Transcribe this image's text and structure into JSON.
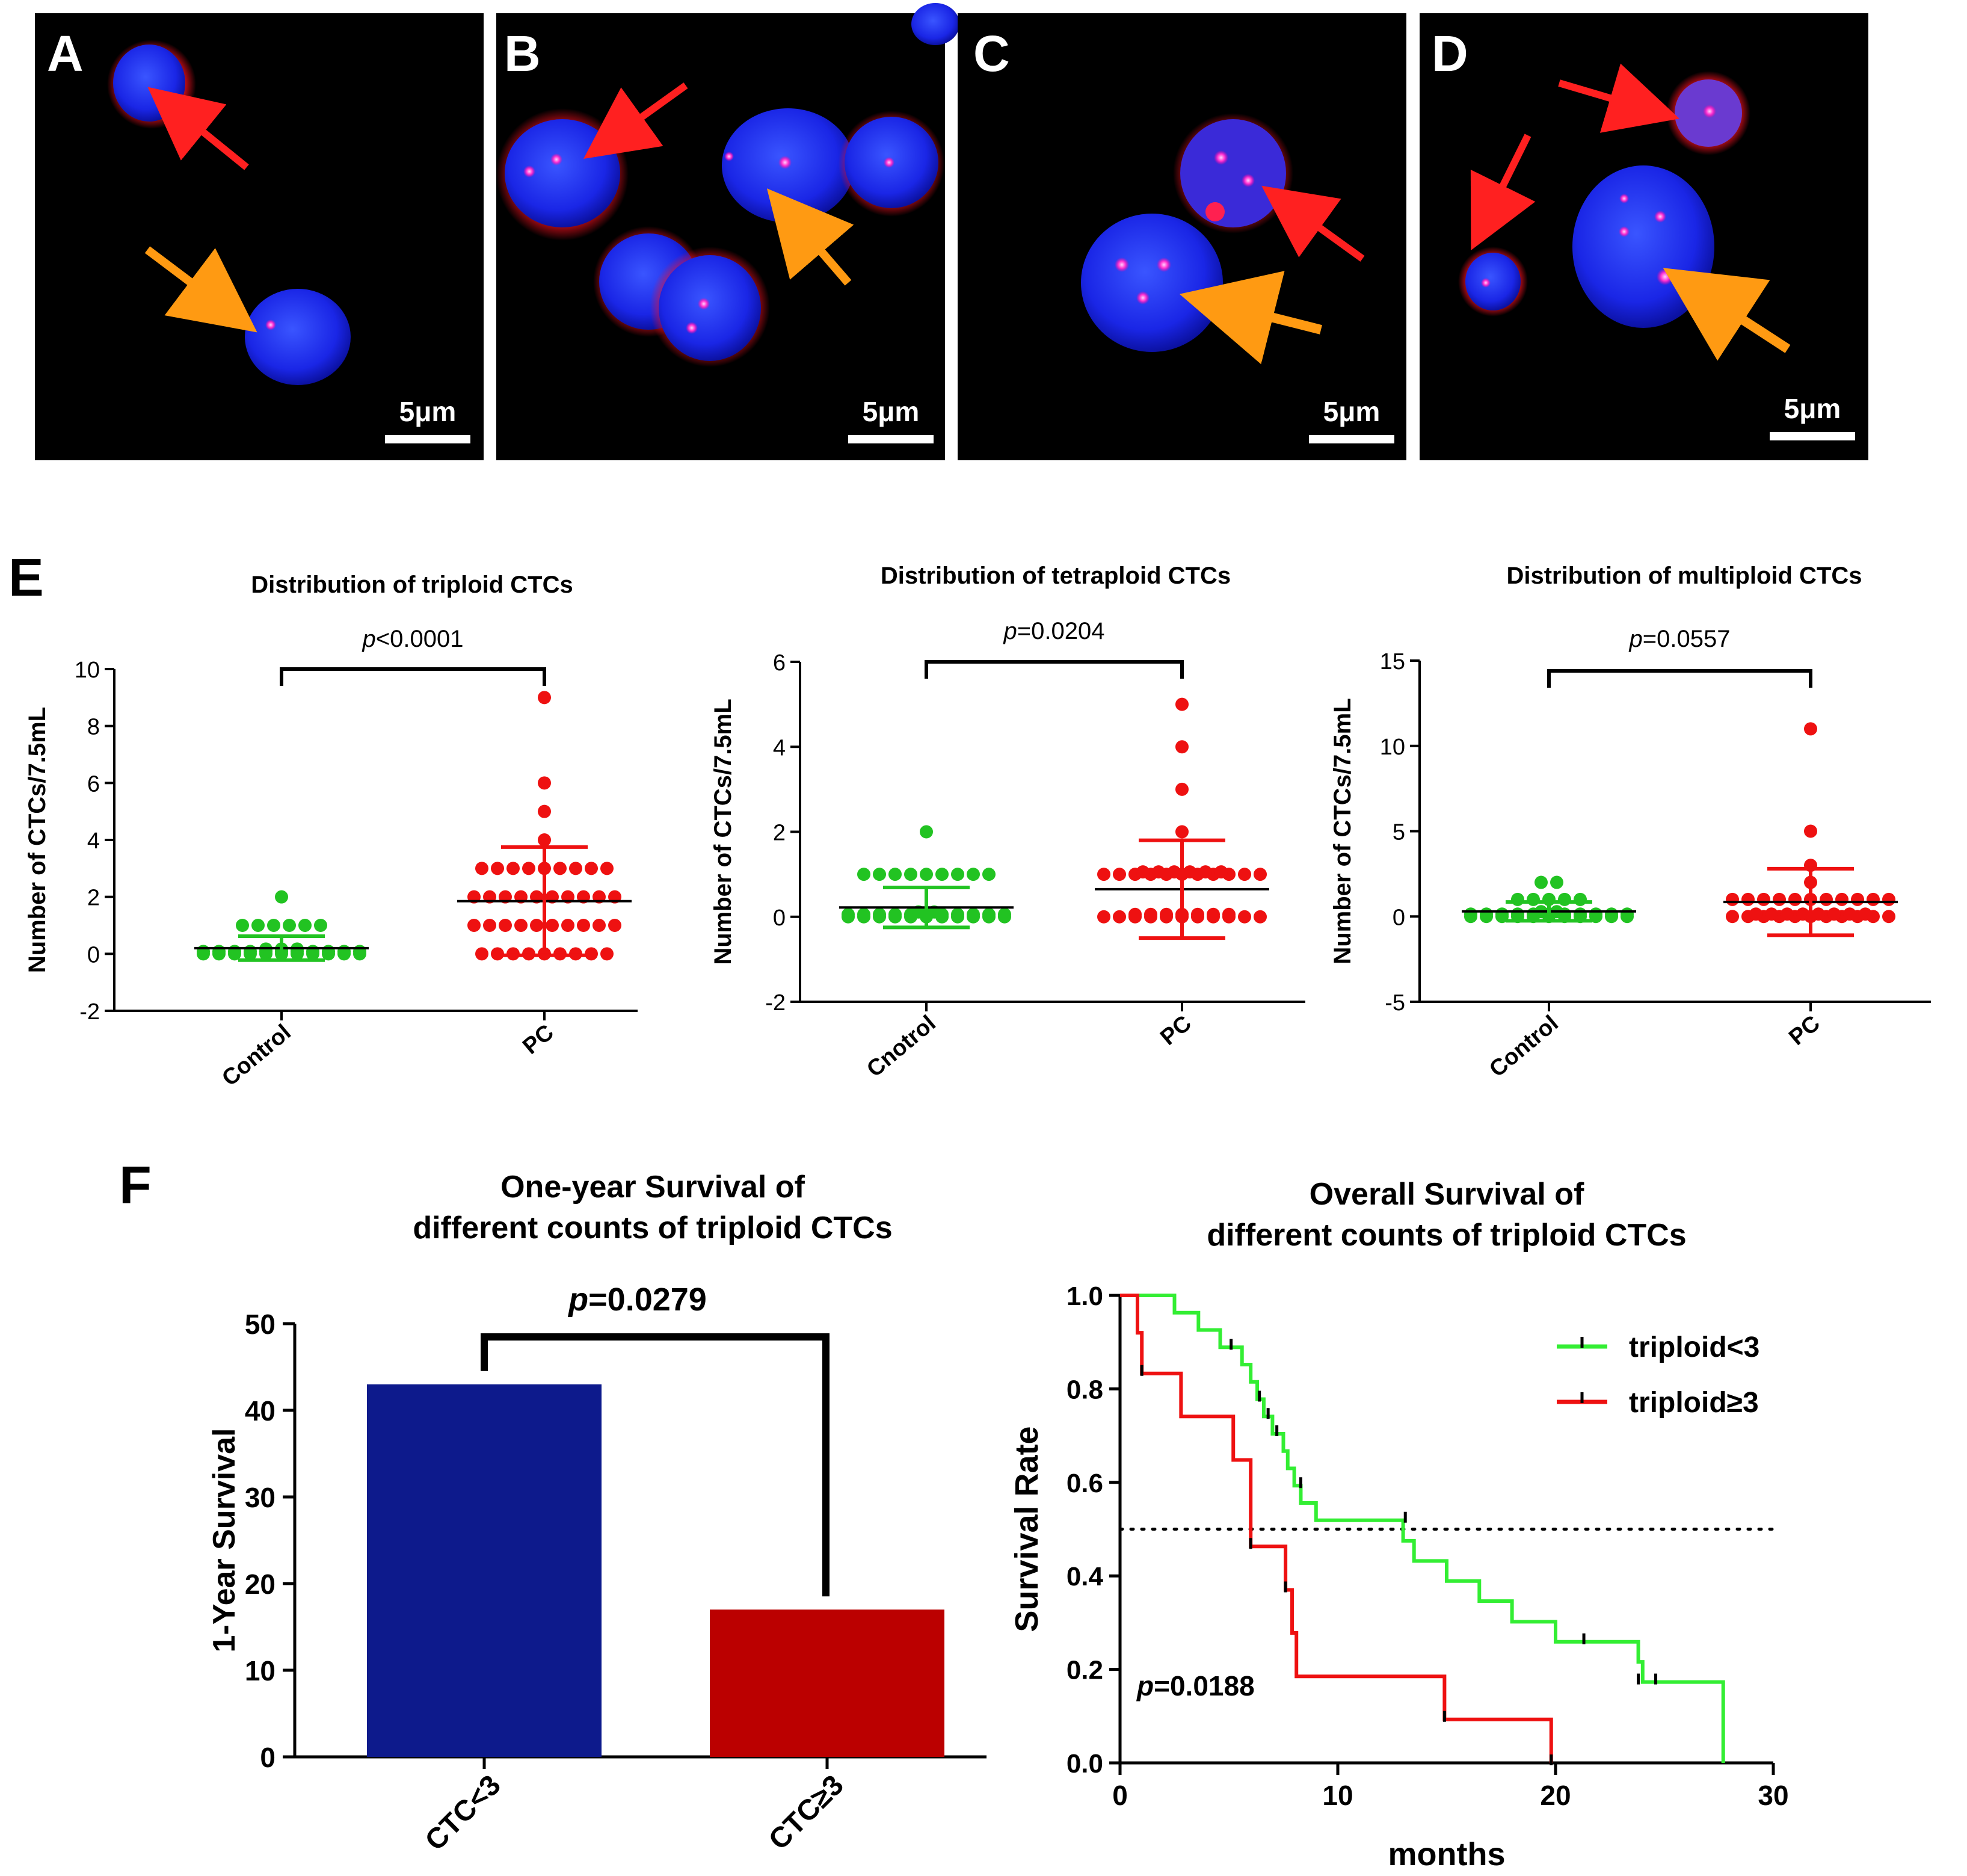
{
  "panels": {
    "A": {
      "letter": "A",
      "scale_bar": "5μm"
    },
    "B": {
      "letter": "B",
      "scale_bar": "5μm"
    },
    "C": {
      "letter": "C",
      "scale_bar": "5μm"
    },
    "D": {
      "letter": "D",
      "scale_bar": "5μm"
    },
    "E": {
      "letter": "E"
    },
    "F": {
      "letter": "F"
    }
  },
  "colors": {
    "control": "#22c322",
    "pc": "#ee1111",
    "nucleus": "#1f2fff",
    "red_arrow": "#ff2020",
    "orange_arrow": "#ff9a12",
    "bar_low": "#0d1a8c",
    "bar_high": "#bb0000",
    "km_low": "#33ee33",
    "km_high": "#ee1111"
  },
  "chart_data": [
    {
      "type": "scatter",
      "title": "Distribution of triploid CTCs",
      "ylabel": "Number of CTCs/7.5mL",
      "categories": [
        "Control",
        "PC"
      ],
      "ylim": [
        -2,
        10
      ],
      "yticks": [
        "-2",
        "0",
        "2",
        "4",
        "6",
        "8",
        "10"
      ],
      "p_prefix": "p",
      "p_value": "<0.0001",
      "series": [
        {
          "name": "Control",
          "values": [
            2,
            1,
            1,
            1,
            1,
            1,
            1,
            0,
            0,
            0,
            0,
            0,
            0,
            0,
            0,
            0,
            0,
            0,
            0,
            0,
            0,
            0,
            0,
            0,
            0,
            0,
            0,
            0,
            0,
            0,
            0,
            0
          ],
          "mean": 0.2,
          "sd": 0.42
        },
        {
          "name": "PC",
          "values": [
            9,
            6,
            5,
            4,
            3,
            3,
            3,
            3,
            3,
            3,
            3,
            3,
            3,
            2,
            2,
            2,
            2,
            2,
            2,
            2,
            2,
            2,
            2,
            1,
            1,
            1,
            1,
            1,
            1,
            1,
            1,
            1,
            1,
            0,
            0,
            0,
            0,
            0,
            0,
            0,
            0,
            0
          ],
          "mean": 1.85,
          "sd": 1.9
        }
      ]
    },
    {
      "type": "scatter",
      "title": "Distribution of tetraploid CTCs",
      "ylabel": "Number of CTCs/7.5mL",
      "categories": [
        "Cnotrol",
        "PC"
      ],
      "ylim": [
        -2,
        6
      ],
      "yticks": [
        "-2",
        "0",
        "2",
        "4",
        "6"
      ],
      "p_prefix": "p",
      "p_value": "=0.0204",
      "series": [
        {
          "name": "Cnotrol",
          "values": [
            2,
            1,
            1,
            1,
            1,
            1,
            1,
            1,
            1,
            1,
            0,
            0,
            0,
            0,
            0,
            0,
            0,
            0,
            0,
            0,
            0,
            0,
            0,
            0,
            0,
            0,
            0,
            0,
            0,
            0,
            0,
            0,
            0,
            0
          ],
          "mean": 0.22,
          "sd": 0.47
        },
        {
          "name": "PC",
          "values": [
            5,
            4,
            3,
            2,
            1,
            1,
            1,
            1,
            1,
            1,
            1,
            1,
            1,
            1,
            1,
            1,
            1,
            1,
            1,
            1,
            1,
            0,
            0,
            0,
            0,
            0,
            0,
            0,
            0,
            0,
            0,
            0,
            0,
            0,
            0,
            0,
            0,
            0,
            0
          ],
          "mean": 0.65,
          "sd": 1.15
        }
      ]
    },
    {
      "type": "scatter",
      "title": "Distribution of multiploid CTCs",
      "ylabel": "Number of CTCs/7.5mL",
      "categories": [
        "Control",
        "PC"
      ],
      "ylim": [
        -5,
        15
      ],
      "yticks": [
        "-5",
        "0",
        "5",
        "10",
        "15"
      ],
      "p_prefix": "p",
      "p_value": "=0.0557",
      "series": [
        {
          "name": "Control",
          "values": [
            2,
            2,
            1,
            1,
            1,
            1,
            1,
            0,
            0,
            0,
            0,
            0,
            0,
            0,
            0,
            0,
            0,
            0,
            0,
            0,
            0,
            0,
            0,
            0,
            0,
            0,
            0,
            0,
            0,
            0,
            0
          ],
          "mean": 0.3,
          "sd": 0.55
        },
        {
          "name": "PC",
          "values": [
            11,
            5,
            3,
            2,
            1,
            1,
            1,
            1,
            1,
            1,
            1,
            1,
            1,
            1,
            1,
            0,
            0,
            0,
            0,
            0,
            0,
            0,
            0,
            0,
            0,
            0,
            0,
            0,
            0,
            0,
            0,
            0,
            0,
            0
          ],
          "mean": 0.85,
          "sd": 1.95
        }
      ]
    },
    {
      "type": "bar",
      "title_line1": "One-year Survival of",
      "title_line2": "different counts of  triploid CTCs",
      "ylabel": "1-Year Survival",
      "categories": [
        "CTC<3",
        "CTC≥3"
      ],
      "values": [
        43,
        17
      ],
      "ylim": [
        0,
        50
      ],
      "yticks": [
        "0",
        "10",
        "20",
        "30",
        "40",
        "50"
      ],
      "p_prefix": "p",
      "p_value": "=0.0279"
    },
    {
      "type": "line",
      "title_line1": "Overall Survival of",
      "title_line2": "different counts of triploid CTCs",
      "xlabel": "months",
      "ylabel": "Survival Rate",
      "xlim": [
        0,
        30
      ],
      "ylim": [
        0,
        1
      ],
      "xticks": [
        "0",
        "10",
        "20",
        "30"
      ],
      "yticks": [
        "0.0",
        "0.2",
        "0.4",
        "0.6",
        "0.8",
        "1.0"
      ],
      "median_line": 0.5,
      "p_prefix": "p",
      "p_value": "=0.0188",
      "series": [
        {
          "name": "triploid<3",
          "steps": [
            [
              0,
              1.0
            ],
            [
              2.5,
              0.963
            ],
            [
              3.6,
              0.926
            ],
            [
              4.6,
              0.889
            ],
            [
              5.6,
              0.852
            ],
            [
              6.0,
              0.815
            ],
            [
              6.3,
              0.778
            ],
            [
              6.6,
              0.741
            ],
            [
              7.0,
              0.704
            ],
            [
              7.5,
              0.667
            ],
            [
              7.7,
              0.63
            ],
            [
              8.0,
              0.593
            ],
            [
              8.3,
              0.556
            ],
            [
              9.0,
              0.519
            ],
            [
              13.0,
              0.475
            ],
            [
              13.5,
              0.432
            ],
            [
              15.0,
              0.389
            ],
            [
              16.5,
              0.346
            ],
            [
              18.0,
              0.302
            ],
            [
              20.0,
              0.259
            ],
            [
              23.8,
              0.216
            ],
            [
              24.0,
              0.173
            ],
            [
              27.7,
              0.0
            ]
          ],
          "end": 27.7,
          "censor": [
            [
              5.1,
              0.889
            ],
            [
              6.4,
              0.778
            ],
            [
              6.8,
              0.741
            ],
            [
              7.2,
              0.704
            ],
            [
              8.3,
              0.593
            ],
            [
              13.1,
              0.519
            ],
            [
              21.3,
              0.259
            ],
            [
              23.8,
              0.173
            ],
            [
              24.6,
              0.173
            ]
          ]
        },
        {
          "name": "triploid≥3",
          "steps": [
            [
              0,
              1.0
            ],
            [
              0.8,
              0.92
            ],
            [
              1.0,
              0.833
            ],
            [
              2.8,
              0.741
            ],
            [
              5.2,
              0.648
            ],
            [
              6.0,
              0.463
            ],
            [
              7.6,
              0.37
            ],
            [
              7.9,
              0.278
            ],
            [
              8.1,
              0.185
            ],
            [
              14.9,
              0.093
            ],
            [
              19.8,
              0.0
            ]
          ],
          "end": 19.8,
          "censor": [
            [
              1.0,
              0.833
            ],
            [
              6.0,
              0.463
            ],
            [
              7.6,
              0.37
            ],
            [
              14.9,
              0.093
            ],
            [
              19.8,
              0.0
            ]
          ]
        }
      ]
    }
  ]
}
